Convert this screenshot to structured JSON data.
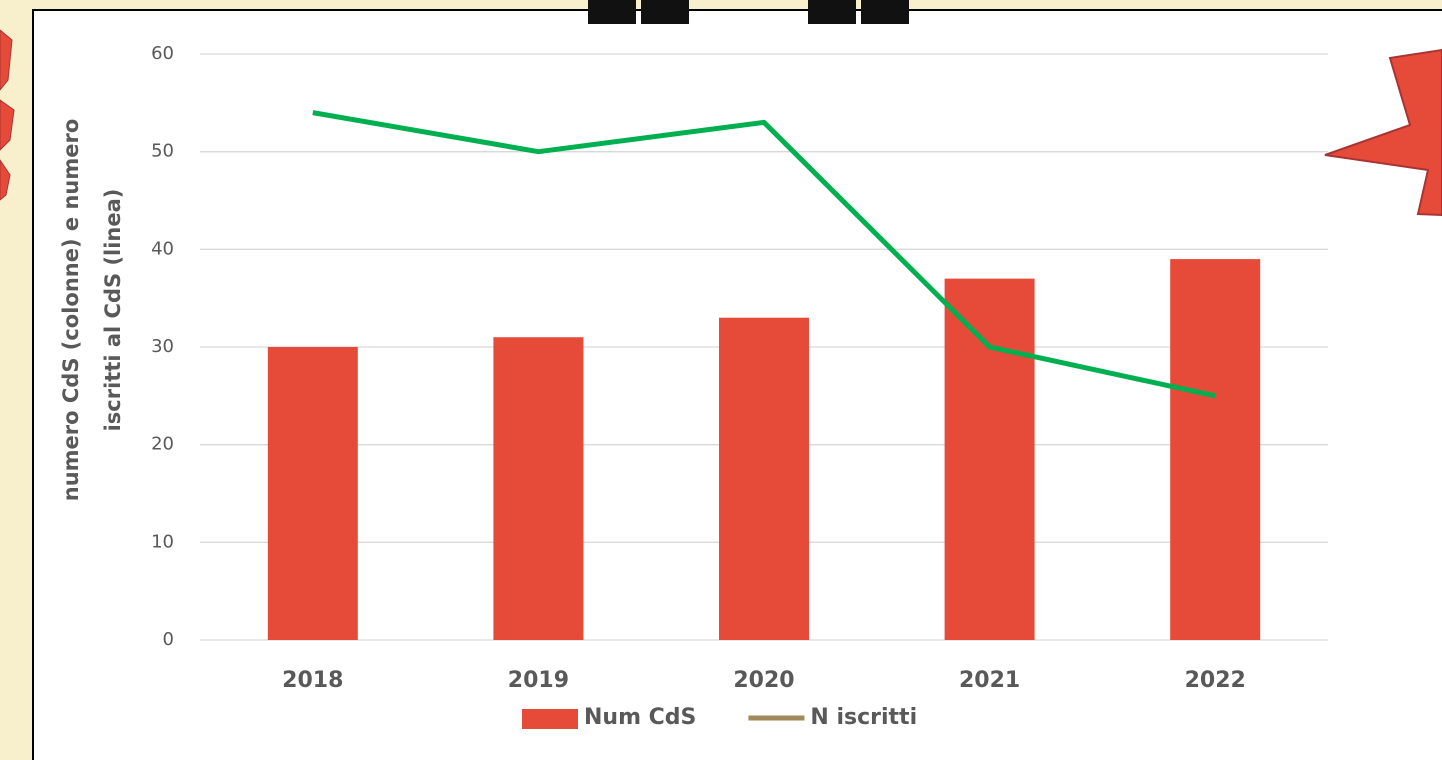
{
  "chart_data": {
    "type": "bar_line",
    "ylabel": [
      "numero CdS (colonne) e numero",
      "iscritti al CdS (linea)"
    ],
    "categories": [
      "2018",
      "2019",
      "2020",
      "2021",
      "2022"
    ],
    "series": [
      {
        "name": "Num CdS",
        "type": "bar",
        "color": "#e54b38",
        "values": [
          30,
          31,
          33,
          37,
          39
        ]
      },
      {
        "name": "N iscritti",
        "type": "line",
        "color": "#00b050",
        "legend_color": "#a08a5a",
        "values": [
          54,
          50,
          53,
          30,
          25
        ]
      }
    ],
    "ylim": [
      0,
      60
    ],
    "yticks": [
      0,
      10,
      20,
      30,
      40,
      50,
      60
    ],
    "grid": true
  }
}
